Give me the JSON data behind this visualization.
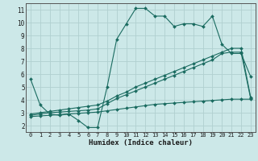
{
  "xlabel": "Humidex (Indice chaleur)",
  "background_color": "#cce8e8",
  "grid_color": "#b0d0d0",
  "line_color": "#1a6b60",
  "xlim": [
    -0.5,
    23.5
  ],
  "ylim": [
    1.5,
    11.5
  ],
  "xticks": [
    0,
    1,
    2,
    3,
    4,
    5,
    6,
    7,
    8,
    9,
    10,
    11,
    12,
    13,
    14,
    15,
    16,
    17,
    18,
    19,
    20,
    21,
    22,
    23
  ],
  "yticks": [
    2,
    3,
    4,
    5,
    6,
    7,
    8,
    9,
    10,
    11
  ],
  "series1_y": [
    5.6,
    3.6,
    2.9,
    2.8,
    2.9,
    2.4,
    1.85,
    1.85,
    5.0,
    8.7,
    9.9,
    11.1,
    11.1,
    10.5,
    10.5,
    9.7,
    9.9,
    9.9,
    9.7,
    10.5,
    8.3,
    7.6,
    7.6,
    5.8
  ],
  "series2_y": [
    2.8,
    2.9,
    3.0,
    3.05,
    3.1,
    3.15,
    3.2,
    3.3,
    3.7,
    4.1,
    4.4,
    4.7,
    5.0,
    5.3,
    5.6,
    5.9,
    6.2,
    6.5,
    6.8,
    7.1,
    7.6,
    7.7,
    7.7,
    4.1
  ],
  "series3_y": [
    2.9,
    3.0,
    3.1,
    3.2,
    3.3,
    3.4,
    3.5,
    3.6,
    3.9,
    4.3,
    4.6,
    5.0,
    5.3,
    5.6,
    5.9,
    6.2,
    6.5,
    6.8,
    7.1,
    7.4,
    7.7,
    8.0,
    8.0,
    4.2
  ],
  "series4_y": [
    2.7,
    2.75,
    2.8,
    2.85,
    2.9,
    2.95,
    3.0,
    3.05,
    3.15,
    3.25,
    3.35,
    3.45,
    3.55,
    3.65,
    3.7,
    3.75,
    3.8,
    3.85,
    3.9,
    3.95,
    4.0,
    4.05,
    4.05,
    4.05
  ]
}
